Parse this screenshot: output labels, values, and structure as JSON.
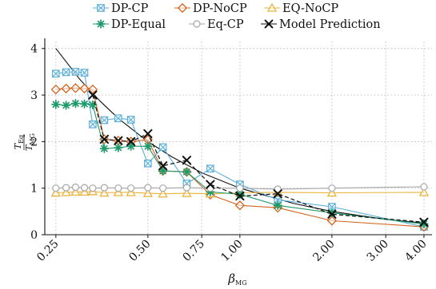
{
  "chart_data": {
    "type": "line",
    "xlabel": "β",
    "xlabel_sub": "MG",
    "ylabel_num": "T",
    "ylabel_num_sub": "Eq",
    "ylabel_den": "T",
    "ylabel_den_sub": "MG",
    "x_scale": "log",
    "xlim": [
      0.23,
      4.25
    ],
    "ylim": [
      0,
      4.15
    ],
    "xticks": [
      0.25,
      0.5,
      0.75,
      1.0,
      2.0,
      3.0,
      4.0
    ],
    "xtick_labels": [
      "0.25",
      "0.50",
      "0.75",
      "1.00",
      "2.00",
      "3.00",
      "4.00"
    ],
    "yticks": [
      0,
      1,
      2,
      3,
      4
    ],
    "ytick_labels": [
      "0",
      "1",
      "2",
      "3",
      "4"
    ],
    "grid": true,
    "legend_position": "top",
    "series": [
      {
        "name": "DP-CP",
        "color": "#5aaed8",
        "marker": "square-x",
        "line": "solid",
        "points": [
          [
            0.25,
            3.46
          ],
          [
            0.27,
            3.49
          ],
          [
            0.29,
            3.5
          ],
          [
            0.31,
            3.48
          ],
          [
            0.33,
            2.37
          ],
          [
            0.36,
            2.46
          ],
          [
            0.4,
            2.5
          ],
          [
            0.44,
            2.47
          ],
          [
            0.5,
            1.53
          ],
          [
            0.56,
            1.88
          ],
          [
            0.67,
            1.1
          ],
          [
            0.8,
            1.42
          ],
          [
            1.0,
            1.08
          ],
          [
            1.33,
            0.75
          ],
          [
            2.0,
            0.6
          ],
          [
            4.0,
            0.17
          ]
        ]
      },
      {
        "name": "DP-NoCP",
        "color": "#d2651f",
        "marker": "diamond",
        "line": "solid",
        "points": [
          [
            0.25,
            3.12
          ],
          [
            0.27,
            3.14
          ],
          [
            0.29,
            3.15
          ],
          [
            0.31,
            3.14
          ],
          [
            0.33,
            3.12
          ],
          [
            0.36,
            2.05
          ],
          [
            0.4,
            2.02
          ],
          [
            0.44,
            2.0
          ],
          [
            0.5,
            2.04
          ],
          [
            0.56,
            1.37
          ],
          [
            0.67,
            1.35
          ],
          [
            0.8,
            0.86
          ],
          [
            1.0,
            0.63
          ],
          [
            1.33,
            0.58
          ],
          [
            2.0,
            0.3
          ],
          [
            4.0,
            0.17
          ]
        ]
      },
      {
        "name": "EQ-NoCP",
        "color": "#e9b23a",
        "marker": "triangle",
        "line": "solid",
        "points": [
          [
            0.25,
            0.9
          ],
          [
            0.27,
            0.91
          ],
          [
            0.29,
            0.92
          ],
          [
            0.31,
            0.92
          ],
          [
            0.33,
            0.93
          ],
          [
            0.36,
            0.9
          ],
          [
            0.4,
            0.91
          ],
          [
            0.44,
            0.91
          ],
          [
            0.5,
            0.89
          ],
          [
            0.56,
            0.88
          ],
          [
            0.67,
            0.89
          ],
          [
            0.8,
            0.88
          ],
          [
            1.0,
            0.9
          ],
          [
            1.33,
            0.91
          ],
          [
            2.0,
            0.9
          ],
          [
            4.0,
            0.91
          ]
        ]
      },
      {
        "name": "DP-Equal",
        "color": "#1f9a6b",
        "marker": "asterisk",
        "line": "solid",
        "points": [
          [
            0.25,
            2.8
          ],
          [
            0.27,
            2.78
          ],
          [
            0.29,
            2.82
          ],
          [
            0.31,
            2.81
          ],
          [
            0.33,
            2.79
          ],
          [
            0.36,
            1.85
          ],
          [
            0.4,
            1.87
          ],
          [
            0.44,
            1.9
          ],
          [
            0.5,
            1.9
          ],
          [
            0.56,
            1.37
          ],
          [
            0.67,
            1.35
          ],
          [
            0.8,
            0.92
          ],
          [
            1.0,
            0.87
          ],
          [
            1.33,
            0.63
          ],
          [
            2.0,
            0.47
          ],
          [
            4.0,
            0.23
          ]
        ]
      },
      {
        "name": "Eq-CP",
        "color": "#a6a6a6",
        "marker": "circle",
        "line": "solid",
        "points": [
          [
            0.25,
            1.0
          ],
          [
            0.27,
            1.01
          ],
          [
            0.29,
            1.02
          ],
          [
            0.31,
            1.01
          ],
          [
            0.33,
            1.0
          ],
          [
            0.36,
            1.01
          ],
          [
            0.4,
            1.0
          ],
          [
            0.44,
            1.0
          ],
          [
            0.5,
            1.01
          ],
          [
            0.56,
            1.0
          ],
          [
            0.67,
            1.01
          ],
          [
            0.8,
            1.0
          ],
          [
            1.0,
            1.0
          ],
          [
            1.33,
            0.98
          ],
          [
            2.0,
            1.0
          ],
          [
            4.0,
            1.03
          ]
        ]
      },
      {
        "name": "Model Prediction",
        "color": "#111111",
        "marker": "x",
        "line": "dashed",
        "points": [
          [
            0.33,
            3.0
          ],
          [
            0.36,
            2.05
          ],
          [
            0.4,
            2.02
          ],
          [
            0.44,
            2.0
          ],
          [
            0.5,
            2.17
          ],
          [
            0.56,
            1.48
          ],
          [
            0.67,
            1.6
          ],
          [
            0.8,
            1.08
          ],
          [
            1.0,
            0.83
          ],
          [
            1.33,
            0.88
          ],
          [
            2.0,
            0.44
          ],
          [
            4.0,
            0.27
          ]
        ]
      }
    ],
    "model_curve": {
      "color": "#111111",
      "line": "solid",
      "points": [
        [
          0.25,
          4.0
        ],
        [
          0.3,
          3.33
        ],
        [
          0.35,
          2.86
        ],
        [
          0.4,
          2.5
        ],
        [
          0.5,
          2.0
        ],
        [
          0.6,
          1.67
        ],
        [
          0.75,
          1.33
        ],
        [
          1.0,
          1.0
        ],
        [
          1.5,
          0.67
        ],
        [
          2.0,
          0.5
        ],
        [
          3.0,
          0.33
        ],
        [
          4.0,
          0.25
        ]
      ]
    }
  }
}
